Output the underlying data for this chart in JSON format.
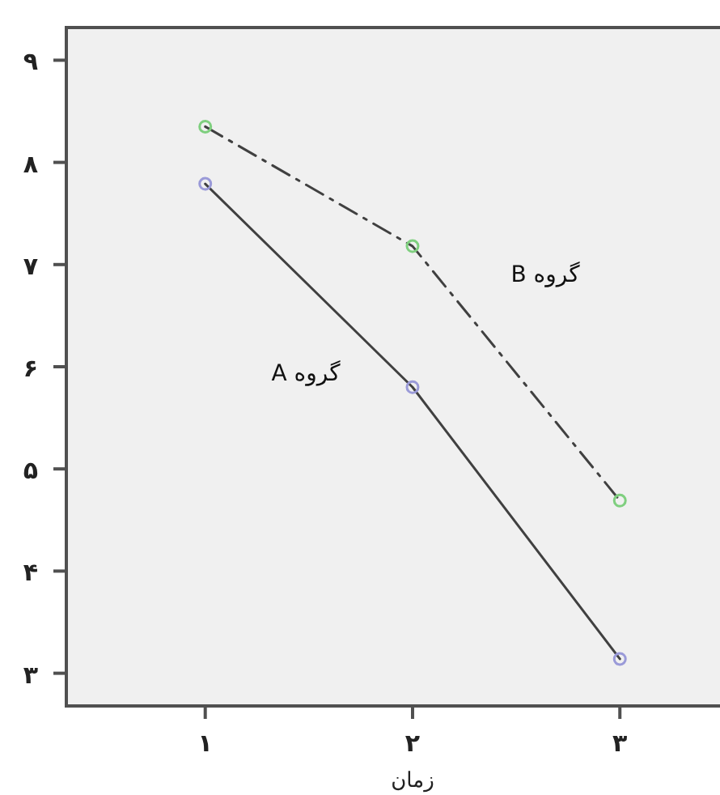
{
  "chart_data": {
    "type": "line",
    "xlabel": "زمان",
    "x": [
      1,
      2,
      3
    ],
    "xlim": [
      0.33,
      3.6
    ],
    "ylim": [
      2.68,
      9.32
    ],
    "xticks": [
      {
        "value": 1,
        "label": "۱"
      },
      {
        "value": 2,
        "label": "۲"
      },
      {
        "value": 3,
        "label": "۳"
      }
    ],
    "yticks": [
      {
        "value": 3,
        "label": "۳"
      },
      {
        "value": 4,
        "label": "۴"
      },
      {
        "value": 5,
        "label": "۵"
      },
      {
        "value": 6,
        "label": "۶"
      },
      {
        "value": 7,
        "label": "۷"
      },
      {
        "value": 8,
        "label": "۸"
      },
      {
        "value": 9,
        "label": "۹"
      }
    ],
    "series": [
      {
        "name": "گروه B",
        "color": "#404040",
        "colors": [
          "#7fcf7f",
          "#7fcf7f",
          "#7fcf7f"
        ],
        "line_style": "dashdot",
        "values": [
          8.35,
          7.18,
          4.69
        ]
      },
      {
        "name": "گروه A",
        "color": "#404040",
        "colors": [
          "#9a9ad8",
          "#9a9ad8",
          "#9a9ad8"
        ],
        "line_style": "solid",
        "values": [
          7.79,
          5.8,
          3.14
        ]
      }
    ],
    "marker": "circle",
    "grid": false,
    "legend": false
  }
}
